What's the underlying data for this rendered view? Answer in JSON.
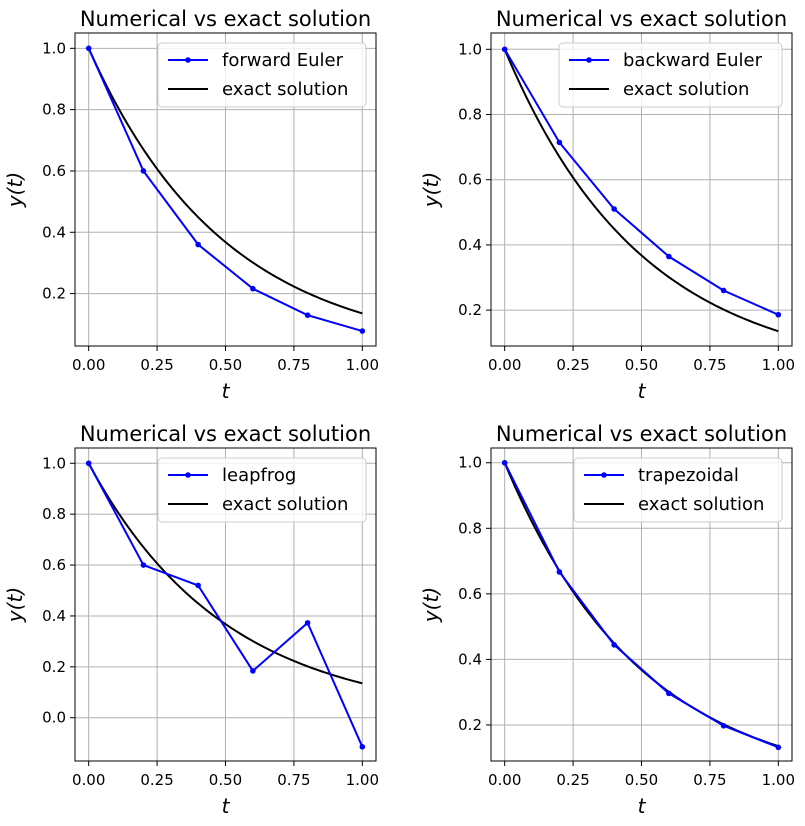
{
  "chart_data": [
    {
      "type": "line",
      "title": "Numerical vs exact solution",
      "xlabel": "t",
      "ylabel": "y(t)",
      "xlim": [
        -0.05,
        1.05
      ],
      "ylim": [
        0.029,
        1.05
      ],
      "xticks": [
        0.0,
        0.25,
        0.5,
        0.75,
        1.0
      ],
      "xtick_labels": [
        "0.00",
        "0.25",
        "0.50",
        "0.75",
        "1.00"
      ],
      "yticks": [
        0.2,
        0.4,
        0.6,
        0.8,
        1.0
      ],
      "ytick_labels": [
        "0.2",
        "0.4",
        "0.6",
        "0.8",
        "1.0"
      ],
      "grid": true,
      "legend_position": "top-right",
      "series": [
        {
          "name": "forward Euler",
          "color": "#0000ff",
          "marker": "dot",
          "x": [
            0.0,
            0.2,
            0.4,
            0.6,
            0.8,
            1.0
          ],
          "y": [
            1.0,
            0.6,
            0.36,
            0.216,
            0.1296,
            0.07776
          ]
        },
        {
          "name": "exact solution",
          "color": "#000000",
          "marker": "none",
          "exact": true
        }
      ]
    },
    {
      "type": "line",
      "title": "Numerical vs exact solution",
      "xlabel": "t",
      "ylabel": "y(t)",
      "xlim": [
        -0.05,
        1.05
      ],
      "ylim": [
        0.09,
        1.05
      ],
      "xticks": [
        0.0,
        0.25,
        0.5,
        0.75,
        1.0
      ],
      "xtick_labels": [
        "0.00",
        "0.25",
        "0.50",
        "0.75",
        "1.00"
      ],
      "yticks": [
        0.2,
        0.4,
        0.6,
        0.8,
        1.0
      ],
      "ytick_labels": [
        "0.2",
        "0.4",
        "0.6",
        "0.8",
        "1.0"
      ],
      "grid": true,
      "legend_position": "top-right",
      "series": [
        {
          "name": "backward Euler",
          "color": "#0000ff",
          "marker": "dot",
          "x": [
            0.0,
            0.2,
            0.4,
            0.6,
            0.8,
            1.0
          ],
          "y": [
            1.0,
            0.7143,
            0.5102,
            0.3644,
            0.2603,
            0.1859
          ]
        },
        {
          "name": "exact solution",
          "color": "#000000",
          "marker": "none",
          "exact": true
        }
      ]
    },
    {
      "type": "line",
      "title": "Numerical vs exact solution",
      "xlabel": "t",
      "ylabel": "y(t)",
      "xlim": [
        -0.05,
        1.05
      ],
      "ylim": [
        -0.17,
        1.06
      ],
      "xticks": [
        0.0,
        0.25,
        0.5,
        0.75,
        1.0
      ],
      "xtick_labels": [
        "0.00",
        "0.25",
        "0.50",
        "0.75",
        "1.00"
      ],
      "yticks": [
        0.0,
        0.2,
        0.4,
        0.6,
        0.8,
        1.0
      ],
      "ytick_labels": [
        "0.0",
        "0.2",
        "0.4",
        "0.6",
        "0.8",
        "1.0"
      ],
      "grid": true,
      "legend_position": "top-right",
      "series": [
        {
          "name": "leapfrog",
          "color": "#0000ff",
          "marker": "dot",
          "x": [
            0.0,
            0.2,
            0.4,
            0.6,
            0.8,
            1.0
          ],
          "y": [
            1.0,
            0.6,
            0.52,
            0.184,
            0.3728,
            -0.1142
          ]
        },
        {
          "name": "exact solution",
          "color": "#000000",
          "marker": "none",
          "exact": true
        }
      ]
    },
    {
      "type": "line",
      "title": "Numerical vs exact solution",
      "xlabel": "t",
      "ylabel": "y(t)",
      "xlim": [
        -0.05,
        1.05
      ],
      "ylim": [
        0.09,
        1.045
      ],
      "xticks": [
        0.0,
        0.25,
        0.5,
        0.75,
        1.0
      ],
      "xtick_labels": [
        "0.00",
        "0.25",
        "0.50",
        "0.75",
        "1.00"
      ],
      "yticks": [
        0.2,
        0.4,
        0.6,
        0.8,
        1.0
      ],
      "ytick_labels": [
        "0.2",
        "0.4",
        "0.6",
        "0.8",
        "1.0"
      ],
      "grid": true,
      "legend_position": "top-right",
      "series": [
        {
          "name": "trapezoidal",
          "color": "#0000ff",
          "marker": "dot",
          "x": [
            0.0,
            0.2,
            0.4,
            0.6,
            0.8,
            1.0
          ],
          "y": [
            1.0,
            0.6667,
            0.4444,
            0.2963,
            0.1975,
            0.1317
          ]
        },
        {
          "name": "exact solution",
          "color": "#000000",
          "marker": "none",
          "exact": true
        }
      ]
    }
  ]
}
